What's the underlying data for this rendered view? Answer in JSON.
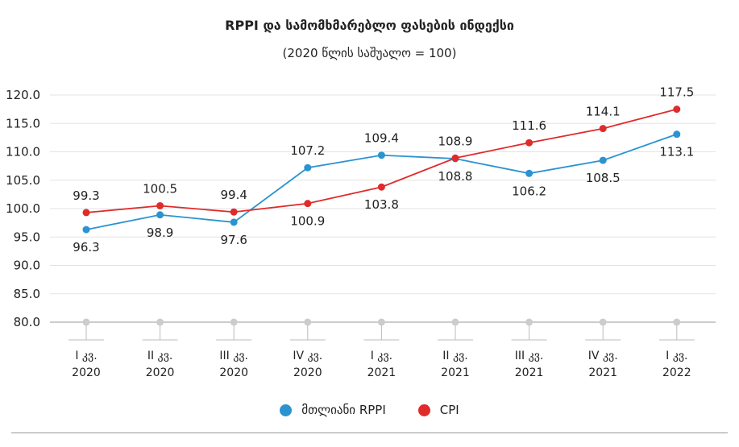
{
  "chart_data": {
    "type": "line",
    "title": "RPPI და სამომხმარებლო ფასების ინდექსი",
    "subtitle": "(2020 წლის საშუალო = 100)",
    "categories": [
      [
        "I კვ.",
        "2020"
      ],
      [
        "II კვ.",
        "2020"
      ],
      [
        "III კვ.",
        "2020"
      ],
      [
        "IV კვ.",
        "2020"
      ],
      [
        "I კვ.",
        "2021"
      ],
      [
        "II კვ.",
        "2021"
      ],
      [
        "III კვ.",
        "2021"
      ],
      [
        "IV კვ.",
        "2021"
      ],
      [
        "I კვ.",
        "2022"
      ]
    ],
    "ylim": [
      80,
      120
    ],
    "yticks": [
      "80.0",
      "85.0",
      "90.0",
      "95.0",
      "100.0",
      "105.0",
      "110.0",
      "115.0",
      "120.0"
    ],
    "grid": true,
    "legend_position": "bottom-center",
    "series": [
      {
        "name": "მთლიანი RPPI",
        "color": "#2a93d0",
        "values": [
          96.3,
          98.9,
          97.6,
          107.2,
          109.4,
          108.8,
          106.2,
          108.5,
          113.1
        ],
        "labels": [
          "96.3",
          "98.9",
          "97.6",
          "107.2",
          "109.4",
          "108.8",
          "106.2",
          "108.5",
          "113.1"
        ]
      },
      {
        "name": "CPI",
        "color": "#e02b2b",
        "values": [
          99.3,
          100.5,
          99.4,
          100.9,
          103.8,
          108.9,
          111.6,
          114.1,
          117.5
        ],
        "labels": [
          "99.3",
          "100.5",
          "99.4",
          "100.9",
          "103.8",
          "108.9",
          "111.6",
          "114.1",
          "117.5"
        ]
      }
    ],
    "baseline_marker_color": "#cccccc"
  }
}
